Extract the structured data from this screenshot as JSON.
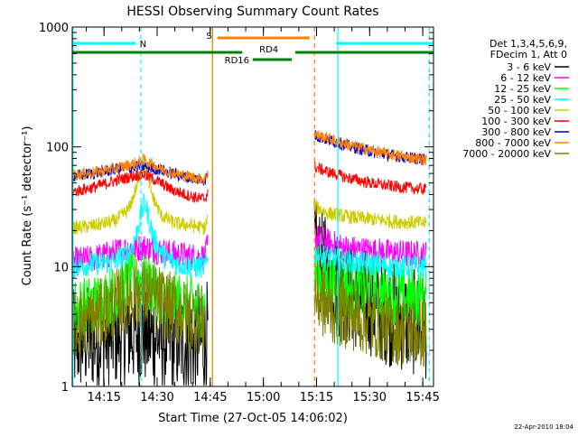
{
  "chart_data": {
    "type": "line",
    "title": "HESSI Observing Summary Count Rates",
    "xlabel": "Start Time (27-Oct-05 14:06:02)",
    "ylabel": "Count Rate (s⁻¹ detector⁻¹)",
    "x_range_minutes": [
      0,
      102
    ],
    "xticks": [
      {
        "label": "14:15",
        "min": 8.97
      },
      {
        "label": "14:30",
        "min": 23.97
      },
      {
        "label": "14:45",
        "min": 38.97
      },
      {
        "label": "15:00",
        "min": 53.97
      },
      {
        "label": "15:15",
        "min": 68.97
      },
      {
        "label": "15:30",
        "min": 83.97
      },
      {
        "label": "15:45",
        "min": 98.97
      }
    ],
    "yscale": "log",
    "ylim": [
      1,
      1000
    ],
    "yticks": [
      {
        "label": "1",
        "v": 1
      },
      {
        "label": "10",
        "v": 10
      },
      {
        "label": "100",
        "v": 100
      },
      {
        "label": "1000",
        "v": 1000
      }
    ],
    "legend": {
      "header": [
        "Det 1,3,4,5,6,9,",
        "FDecim 1, Att 0"
      ],
      "placement": "right"
    },
    "series": [
      {
        "name": "3 - 6 keV",
        "color": "#000000",
        "seg1": [
          [
            0,
            2.3
          ],
          [
            4,
            2.5
          ],
          [
            10,
            2.6
          ],
          [
            14,
            2.8
          ],
          [
            20,
            2.8
          ],
          [
            25,
            2.5
          ],
          [
            30,
            2.4
          ],
          [
            35,
            2.3
          ],
          [
            37.5,
            2.3
          ],
          [
            38.3,
            3
          ]
        ],
        "seg2": [
          [
            68.4,
            13
          ],
          [
            72,
            9
          ],
          [
            78,
            6
          ],
          [
            84,
            5
          ],
          [
            90,
            4
          ],
          [
            95,
            3.5
          ],
          [
            100,
            3.2
          ]
        ],
        "noise": 0.45
      },
      {
        "name": "6 - 12 keV",
        "color": "#ff00ff",
        "seg1": [
          [
            0,
            11
          ],
          [
            5,
            11.5
          ],
          [
            10,
            12.5
          ],
          [
            15,
            14
          ],
          [
            20,
            14.5
          ],
          [
            25,
            13.5
          ],
          [
            30,
            12.5
          ],
          [
            35,
            12
          ],
          [
            37.5,
            12
          ],
          [
            38.3,
            15
          ]
        ],
        "seg2": [
          [
            68.4,
            18
          ],
          [
            72,
            16
          ],
          [
            78,
            14
          ],
          [
            84,
            13.5
          ],
          [
            90,
            13
          ],
          [
            100,
            12.5
          ]
        ],
        "noise": 0.12
      },
      {
        "name": "12 - 25 keV",
        "color": "#00ff00",
        "seg1": [
          [
            0,
            4.5
          ],
          [
            5,
            4.8
          ],
          [
            10,
            5.5
          ],
          [
            14,
            6.5
          ],
          [
            18,
            7.8
          ],
          [
            20,
            7.5
          ],
          [
            23,
            6.5
          ],
          [
            28,
            5.3
          ],
          [
            33,
            4.8
          ],
          [
            37.5,
            4.5
          ]
        ],
        "seg2": [
          [
            68.4,
            9
          ],
          [
            72,
            7.5
          ],
          [
            78,
            6.5
          ],
          [
            84,
            6
          ],
          [
            90,
            5.8
          ],
          [
            100,
            5.5
          ]
        ],
        "noise": 0.25
      },
      {
        "name": "25 - 50 keV",
        "color": "#00ffff",
        "seg1": [
          [
            0,
            10
          ],
          [
            6,
            10.5
          ],
          [
            12,
            11
          ],
          [
            16,
            13
          ],
          [
            18,
            18
          ],
          [
            19.5,
            28
          ],
          [
            20.5,
            35
          ],
          [
            21.5,
            26
          ],
          [
            23,
            17
          ],
          [
            26,
            12
          ],
          [
            30,
            10.5
          ],
          [
            35,
            10
          ],
          [
            37.5,
            10
          ],
          [
            38.3,
            12
          ]
        ],
        "seg2": [
          [
            68.4,
            13
          ],
          [
            72,
            12
          ],
          [
            78,
            11
          ],
          [
            84,
            10.5
          ],
          [
            90,
            10
          ],
          [
            100,
            10
          ]
        ],
        "noise": 0.1
      },
      {
        "name": "50 - 100 keV",
        "color": "#cccc00",
        "seg1": [
          [
            0,
            21
          ],
          [
            6,
            22
          ],
          [
            12,
            24
          ],
          [
            16,
            30
          ],
          [
            18,
            45
          ],
          [
            20,
            68
          ],
          [
            21,
            62
          ],
          [
            22.5,
            40
          ],
          [
            25,
            27
          ],
          [
            29,
            23
          ],
          [
            34,
            22
          ],
          [
            37.5,
            21
          ],
          [
            38.3,
            26
          ]
        ],
        "seg2": [
          [
            68.4,
            32
          ],
          [
            72,
            28
          ],
          [
            78,
            26
          ],
          [
            84,
            25
          ],
          [
            90,
            24
          ],
          [
            100,
            23
          ]
        ],
        "noise": 0.06
      },
      {
        "name": "100 - 300 keV",
        "color": "#ff0000",
        "seg1": [
          [
            0,
            42
          ],
          [
            6,
            46
          ],
          [
            12,
            52
          ],
          [
            18,
            58
          ],
          [
            20,
            59
          ],
          [
            24,
            52
          ],
          [
            28,
            44
          ],
          [
            32,
            40
          ],
          [
            36,
            37
          ],
          [
            37.5,
            37
          ],
          [
            38.3,
            42
          ]
        ],
        "seg2": [
          [
            68.4,
            68
          ],
          [
            72,
            62
          ],
          [
            78,
            55
          ],
          [
            84,
            50
          ],
          [
            90,
            47
          ],
          [
            100,
            44
          ]
        ],
        "noise": 0.05
      },
      {
        "name": "300 - 800 keV",
        "color": "#0000cc",
        "seg1": [
          [
            0,
            57
          ],
          [
            6,
            60
          ],
          [
            12,
            65
          ],
          [
            18,
            68
          ],
          [
            20,
            69
          ],
          [
            25,
            64
          ],
          [
            30,
            58
          ],
          [
            35,
            54
          ],
          [
            37.5,
            53
          ],
          [
            38.3,
            60
          ]
        ],
        "seg2": [
          [
            68.4,
            125
          ],
          [
            72,
            115
          ],
          [
            78,
            102
          ],
          [
            84,
            92
          ],
          [
            90,
            85
          ],
          [
            100,
            78
          ]
        ],
        "noise": 0.05
      },
      {
        "name": "800 - 7000 keV",
        "color": "#ff8000",
        "seg1": [
          [
            0,
            58
          ],
          [
            6,
            61
          ],
          [
            12,
            66
          ],
          [
            18,
            73
          ],
          [
            20,
            78
          ],
          [
            25,
            66
          ],
          [
            30,
            59
          ],
          [
            35,
            55
          ],
          [
            37.5,
            54
          ],
          [
            38.3,
            62
          ]
        ],
        "seg2": [
          [
            68.4,
            128
          ],
          [
            72,
            118
          ],
          [
            78,
            104
          ],
          [
            84,
            94
          ],
          [
            90,
            86
          ],
          [
            100,
            78
          ]
        ],
        "noise": 0.05
      },
      {
        "name": "7000 - 20000 keV",
        "color": "#808000",
        "seg1": [
          [
            0,
            3.3
          ],
          [
            5,
            3.6
          ],
          [
            10,
            4.3
          ],
          [
            14,
            5.2
          ],
          [
            18,
            6
          ],
          [
            20,
            6
          ],
          [
            24,
            5.3
          ],
          [
            28,
            4.5
          ],
          [
            33,
            3.8
          ],
          [
            37.5,
            3.5
          ]
        ],
        "seg2": [
          [
            68.4,
            6
          ],
          [
            72,
            4.5
          ],
          [
            78,
            4
          ],
          [
            84,
            3.5
          ],
          [
            90,
            3
          ],
          [
            100,
            2.8
          ]
        ],
        "noise": 0.3
      }
    ],
    "vlines": [
      {
        "min": 19.4,
        "color": "#00ffff",
        "style": "dashed"
      },
      {
        "min": 0.2,
        "color": "#00ffff",
        "style": "solid"
      },
      {
        "min": 39.6,
        "color": "#cc8000",
        "style": "solid"
      },
      {
        "min": 68.4,
        "color": "#ff8000",
        "style": "dashed"
      },
      {
        "min": 75.0,
        "color": "#00ffff",
        "style": "solid"
      },
      {
        "min": 100.8,
        "color": "#00ffff",
        "style": "dashed"
      }
    ],
    "flags": [
      {
        "label": "N",
        "color": "#00ffff",
        "bars": [
          [
            0,
            18
          ],
          [
            74.5,
            102
          ]
        ],
        "row": "top"
      },
      {
        "label": "S",
        "color": "#ff8000",
        "bars": [
          [
            41,
            67
          ]
        ],
        "row": "upper"
      },
      {
        "label": "RD4",
        "color": "#008000",
        "bars": [
          [
            0,
            48
          ],
          [
            63,
            102
          ]
        ],
        "row": "mid"
      },
      {
        "label": "RD16",
        "color": "#008000",
        "bars": [
          [
            51,
            62
          ]
        ],
        "row": "low"
      }
    ],
    "footnote": "22-Apr-2010 18:04"
  }
}
